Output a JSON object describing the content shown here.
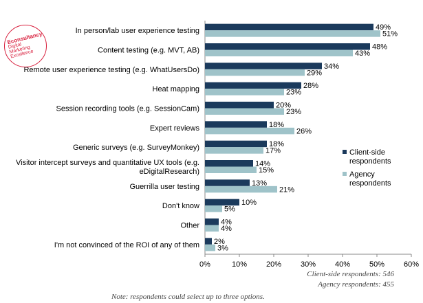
{
  "chart_data": {
    "type": "bar",
    "orientation": "horizontal",
    "categories": [
      "In person/lab user experience testing",
      "Content testing (e.g. MVT, AB)",
      "Remote user experience testing (e.g. WhatUsersDo)",
      "Heat mapping",
      "Session recording tools (e.g. SessionCam)",
      "Expert reviews",
      "Generic surveys (e.g. SurveyMonkey)",
      "Visitor intercept surveys and quantitative UX tools (e.g.\neDigitalResearch)",
      "Guerrilla user testing",
      "Don't know",
      "Other",
      "I'm not convinced of the ROI of any of them"
    ],
    "series": [
      {
        "name": "Client-side\nrespondents",
        "color": "#1b3a5c",
        "values": [
          49,
          48,
          34,
          28,
          20,
          18,
          18,
          14,
          13,
          10,
          4,
          2
        ]
      },
      {
        "name": "Agency\nrespondents",
        "color": "#9fc3c9",
        "values": [
          51,
          43,
          29,
          23,
          23,
          26,
          17,
          15,
          21,
          5,
          4,
          3
        ]
      }
    ],
    "value_suffix": "%",
    "xlim": [
      0,
      60
    ],
    "xticks": [
      "0%",
      "10%",
      "20%",
      "30%",
      "40%",
      "50%",
      "60%"
    ],
    "legend_position": "right",
    "grid": false
  },
  "respondents": {
    "client": "Client-side respondents: 546",
    "agency": "Agency respondents: 455"
  },
  "note": "Note: respondents could select up to three options.",
  "logo": {
    "brand": "Econsultancy",
    "tagline": "Digital\nMarketing\nExcellence"
  }
}
